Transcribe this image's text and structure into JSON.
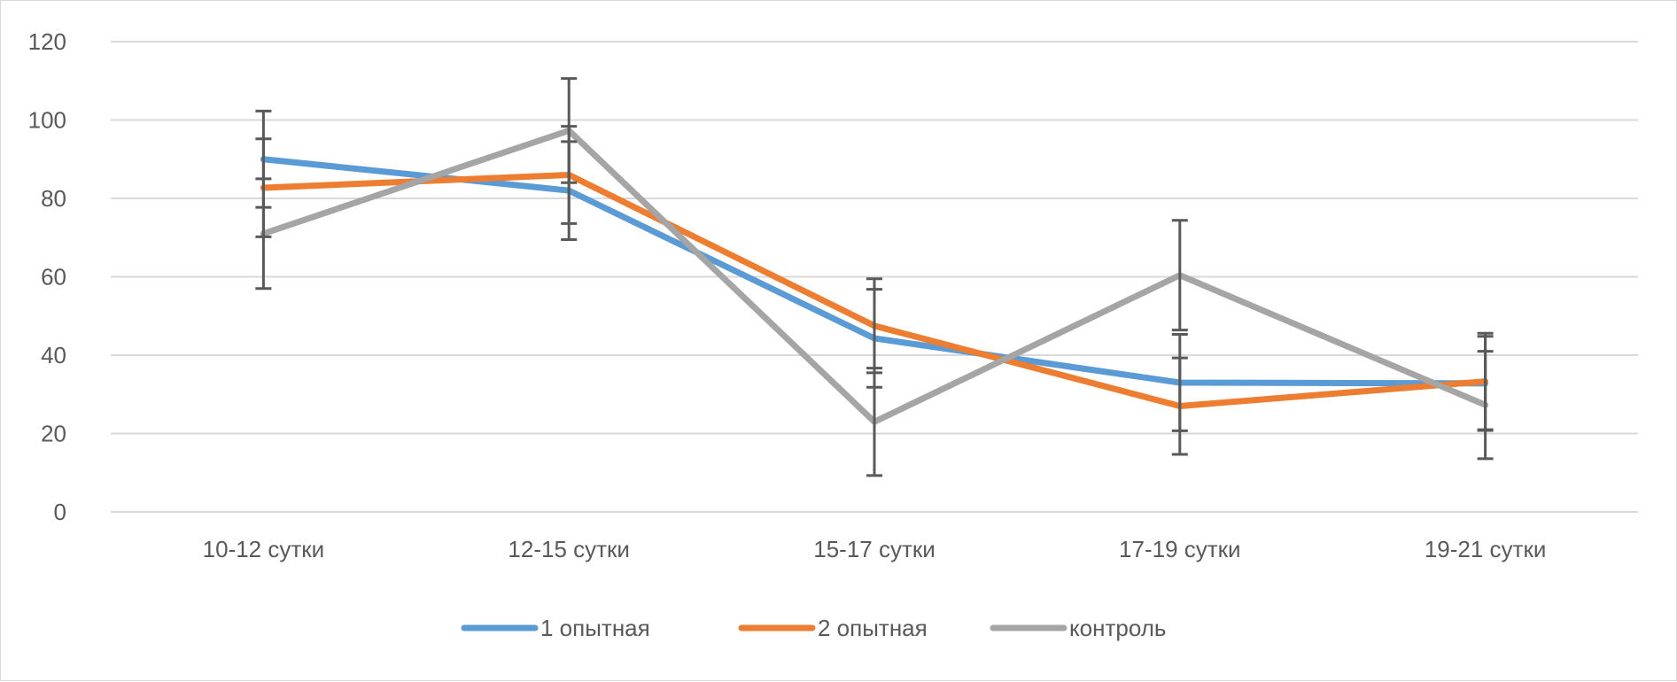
{
  "chart_data": {
    "type": "line",
    "title": "",
    "xlabel": "",
    "ylabel": "",
    "categories": [
      "10-12 сутки",
      "12-15 сутки",
      "15-17 сутки",
      "17-19 сутки",
      "19-21 сутки"
    ],
    "ylim": [
      0,
      120
    ],
    "yticks": [
      0,
      20,
      40,
      60,
      80,
      100,
      120
    ],
    "grid": true,
    "legend_position": "bottom",
    "series": [
      {
        "name": "1 опытная",
        "color": "#5B9BD5",
        "values": [
          90,
          82,
          44.3,
          33,
          32.8
        ],
        "errors": [
          12.3,
          12.5,
          12.5,
          12.3,
          12
        ]
      },
      {
        "name": "2 опытная",
        "color": "#ED7D31",
        "values": [
          82.7,
          86,
          47.5,
          27,
          33.3
        ],
        "errors": [
          12.5,
          12.4,
          12,
          12.3,
          12.3
        ]
      },
      {
        "name": "контроль",
        "color": "#A5A5A5",
        "values": [
          71,
          97.3,
          23,
          60.4,
          27.3
        ],
        "errors": [
          14,
          13.3,
          13.7,
          14,
          13.7
        ]
      }
    ]
  }
}
